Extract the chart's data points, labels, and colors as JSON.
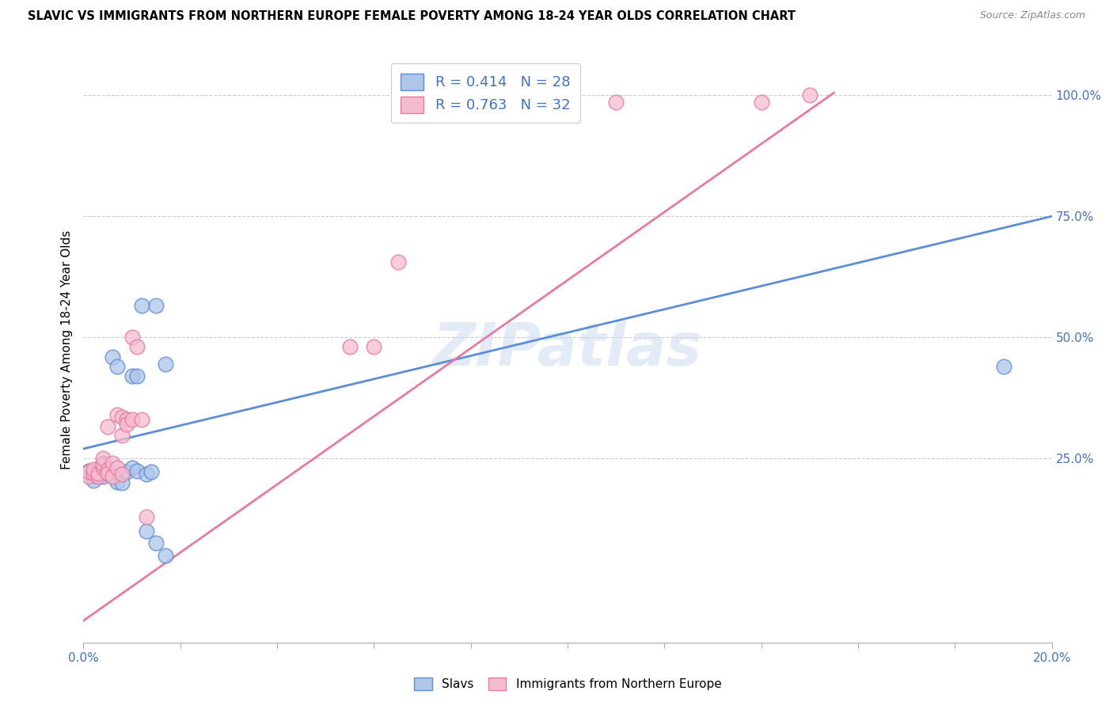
{
  "title": "SLAVIC VS IMMIGRANTS FROM NORTHERN EUROPE FEMALE POVERTY AMONG 18-24 YEAR OLDS CORRELATION CHART",
  "source": "Source: ZipAtlas.com",
  "ylabel": "Female Poverty Among 18-24 Year Olds",
  "slavs_color": "#aec6e8",
  "slavs_edge_color": "#5b8dd9",
  "northern_color": "#f5bcd0",
  "northern_edge_color": "#e87aa0",
  "slavs_R": 0.414,
  "slavs_N": 28,
  "northern_R": 0.763,
  "northern_N": 32,
  "watermark": "ZIPatlas",
  "legend_text_color": "#4472c4",
  "tick_color": "#4472c4",
  "slavs_scatter_x": [
    0.001,
    0.002,
    0.002,
    0.003,
    0.003,
    0.004,
    0.004,
    0.005,
    0.005,
    0.006,
    0.006,
    0.007,
    0.007,
    0.008,
    0.009,
    0.01,
    0.01,
    0.011,
    0.011,
    0.012,
    0.013,
    0.013,
    0.014,
    0.015,
    0.015,
    0.017,
    0.017,
    0.19
  ],
  "slavs_scatter_y": [
    0.225,
    0.215,
    0.205,
    0.228,
    0.22,
    0.213,
    0.24,
    0.22,
    0.228,
    0.212,
    0.46,
    0.44,
    0.202,
    0.2,
    0.222,
    0.42,
    0.23,
    0.42,
    0.225,
    0.565,
    0.218,
    0.1,
    0.222,
    0.565,
    0.075,
    0.445,
    0.05,
    0.44
  ],
  "northern_scatter_x": [
    0.001,
    0.001,
    0.002,
    0.002,
    0.003,
    0.003,
    0.004,
    0.004,
    0.004,
    0.005,
    0.005,
    0.005,
    0.006,
    0.006,
    0.007,
    0.007,
    0.008,
    0.008,
    0.008,
    0.009,
    0.009,
    0.01,
    0.01,
    0.011,
    0.012,
    0.013,
    0.055,
    0.06,
    0.065,
    0.11,
    0.14,
    0.15
  ],
  "northern_scatter_y": [
    0.212,
    0.222,
    0.22,
    0.228,
    0.212,
    0.22,
    0.23,
    0.238,
    0.25,
    0.228,
    0.315,
    0.22,
    0.212,
    0.24,
    0.34,
    0.23,
    0.298,
    0.335,
    0.218,
    0.33,
    0.32,
    0.5,
    0.33,
    0.48,
    0.33,
    0.13,
    0.48,
    0.48,
    0.655,
    0.985,
    0.985,
    1.0
  ],
  "slavs_trend_x": [
    0.0,
    0.2
  ],
  "slavs_trend_y": [
    0.27,
    0.75
  ],
  "northern_trend_x": [
    0.0,
    0.155
  ],
  "northern_trend_y": [
    -0.085,
    1.005
  ],
  "xmin": 0.0,
  "xmax": 0.2,
  "ymin": -0.13,
  "ymax": 1.08,
  "yticks": [
    0.25,
    0.5,
    0.75,
    1.0
  ],
  "ytick_labels": [
    "25.0%",
    "50.0%",
    "75.0%",
    "100.0%"
  ]
}
